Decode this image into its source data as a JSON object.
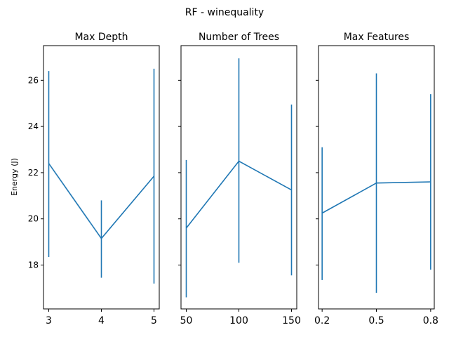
{
  "suptitle": "RF - winequality",
  "ylabel": "Energy (J)",
  "colors": {
    "series": "#1f77b4"
  },
  "chart_data": [
    {
      "type": "line",
      "title": "Max Depth",
      "x": [
        3,
        4,
        5
      ],
      "xticks": [
        "3",
        "4",
        "5"
      ],
      "y": [
        22.4,
        19.15,
        21.85
      ],
      "err_low": [
        18.35,
        17.45,
        17.2
      ],
      "err_high": [
        26.4,
        20.8,
        26.5
      ],
      "xlim": [
        2.9,
        5.1
      ],
      "ylim": [
        16.1,
        27.5
      ],
      "yticks": [
        18,
        20,
        22,
        24,
        26
      ],
      "ylabel": "Energy (J)"
    },
    {
      "type": "line",
      "title": "Number of Trees",
      "x": [
        50,
        100,
        150
      ],
      "xticks": [
        "50",
        "100",
        "150"
      ],
      "y": [
        19.6,
        22.5,
        21.25
      ],
      "err_low": [
        16.6,
        18.1,
        17.55
      ],
      "err_high": [
        22.55,
        26.95,
        24.95
      ],
      "xlim": [
        45,
        155
      ],
      "ylim": [
        16.1,
        27.5
      ],
      "yticks": [
        18,
        20,
        22,
        24,
        26
      ]
    },
    {
      "type": "line",
      "title": "Max Features",
      "x": [
        0.2,
        0.5,
        0.8
      ],
      "xticks": [
        "0.2",
        "0.5",
        "0.8"
      ],
      "y": [
        20.25,
        21.55,
        21.6
      ],
      "err_low": [
        17.35,
        16.8,
        17.8
      ],
      "err_high": [
        23.1,
        26.3,
        25.4
      ],
      "xlim": [
        0.18,
        0.82
      ],
      "ylim": [
        16.1,
        27.5
      ],
      "yticks": [
        18,
        20,
        22,
        24,
        26
      ]
    }
  ]
}
